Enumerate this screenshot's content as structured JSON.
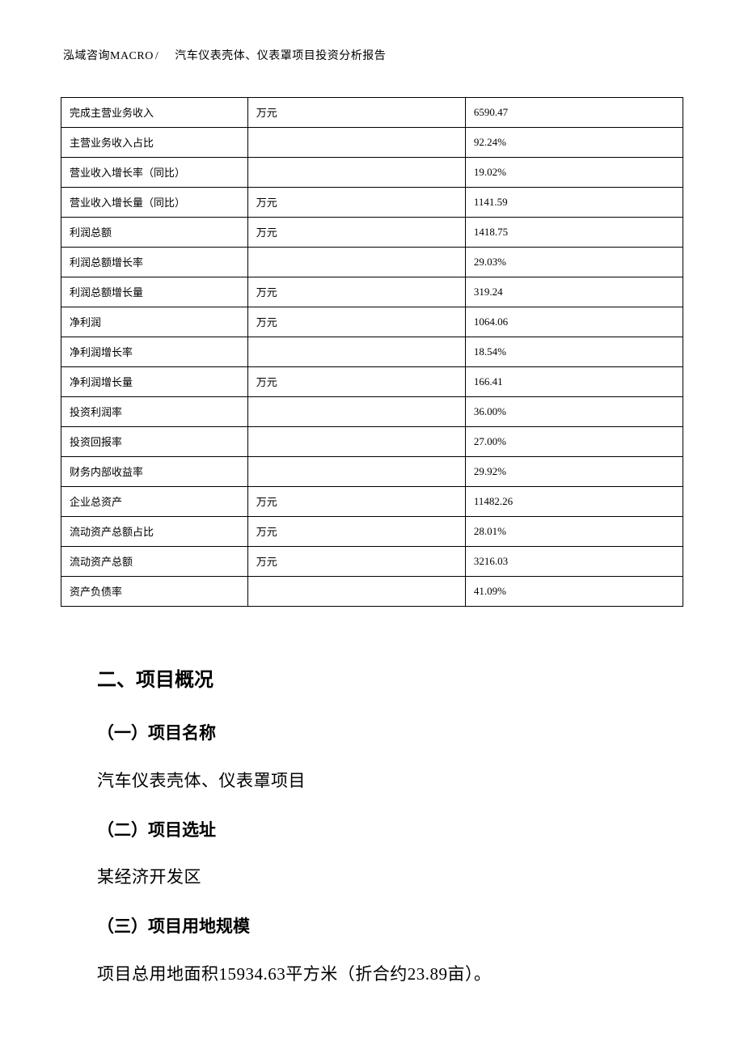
{
  "header": {
    "company": "泓域咨询MACRO",
    "slash": "/",
    "doc_title": "汽车仪表壳体、仪表罩项目投资分析报告"
  },
  "table": {
    "border_color": "#000000",
    "background_color": "#ffffff",
    "font_size_pt": 10,
    "columns": [
      {
        "key": "name",
        "width_pct": 30
      },
      {
        "key": "unit",
        "width_pct": 35
      },
      {
        "key": "value",
        "width_pct": 35
      }
    ],
    "rows": [
      {
        "name": "完成主营业务收入",
        "unit": "万元",
        "value": "6590.47"
      },
      {
        "name": "主营业务收入占比",
        "unit": "",
        "value": "92.24%"
      },
      {
        "name": "营业收入增长率（同比）",
        "unit": "",
        "value": "19.02%"
      },
      {
        "name": "营业收入增长量（同比）",
        "unit": "万元",
        "value": "1141.59"
      },
      {
        "name": "利润总额",
        "unit": "万元",
        "value": "1418.75"
      },
      {
        "name": "利润总额增长率",
        "unit": "",
        "value": "29.03%"
      },
      {
        "name": "利润总额增长量",
        "unit": "万元",
        "value": "319.24"
      },
      {
        "name": "净利润",
        "unit": "万元",
        "value": "1064.06"
      },
      {
        "name": "净利润增长率",
        "unit": "",
        "value": "18.54%"
      },
      {
        "name": "净利润增长量",
        "unit": "万元",
        "value": "166.41"
      },
      {
        "name": "投资利润率",
        "unit": "",
        "value": "36.00%"
      },
      {
        "name": "投资回报率",
        "unit": "",
        "value": "27.00%"
      },
      {
        "name": "财务内部收益率",
        "unit": "",
        "value": "29.92%"
      },
      {
        "name": "企业总资产",
        "unit": "万元",
        "value": "11482.26"
      },
      {
        "name": "流动资产总额占比",
        "unit": "万元",
        "value": "28.01%"
      },
      {
        "name": "流动资产总额",
        "unit": "万元",
        "value": "3216.03"
      },
      {
        "name": "资产负债率",
        "unit": "",
        "value": "41.09%"
      }
    ]
  },
  "sections": {
    "overview_heading": "二、项目概况",
    "sub1_heading": "（一）项目名称",
    "sub1_body": "汽车仪表壳体、仪表罩项目",
    "sub2_heading": "（二）项目选址",
    "sub2_body": "某经济开发区",
    "sub3_heading": "（三）项目用地规模",
    "sub3_body": "项目总用地面积15934.63平方米（折合约23.89亩）。"
  },
  "style": {
    "page_bg": "#ffffff",
    "text_color": "#000000",
    "heading_font": "SimHei",
    "body_font": "SimSun",
    "heading_fontsize_pt": 18,
    "subheading_fontsize_pt": 16,
    "body_fontsize_pt": 16
  }
}
